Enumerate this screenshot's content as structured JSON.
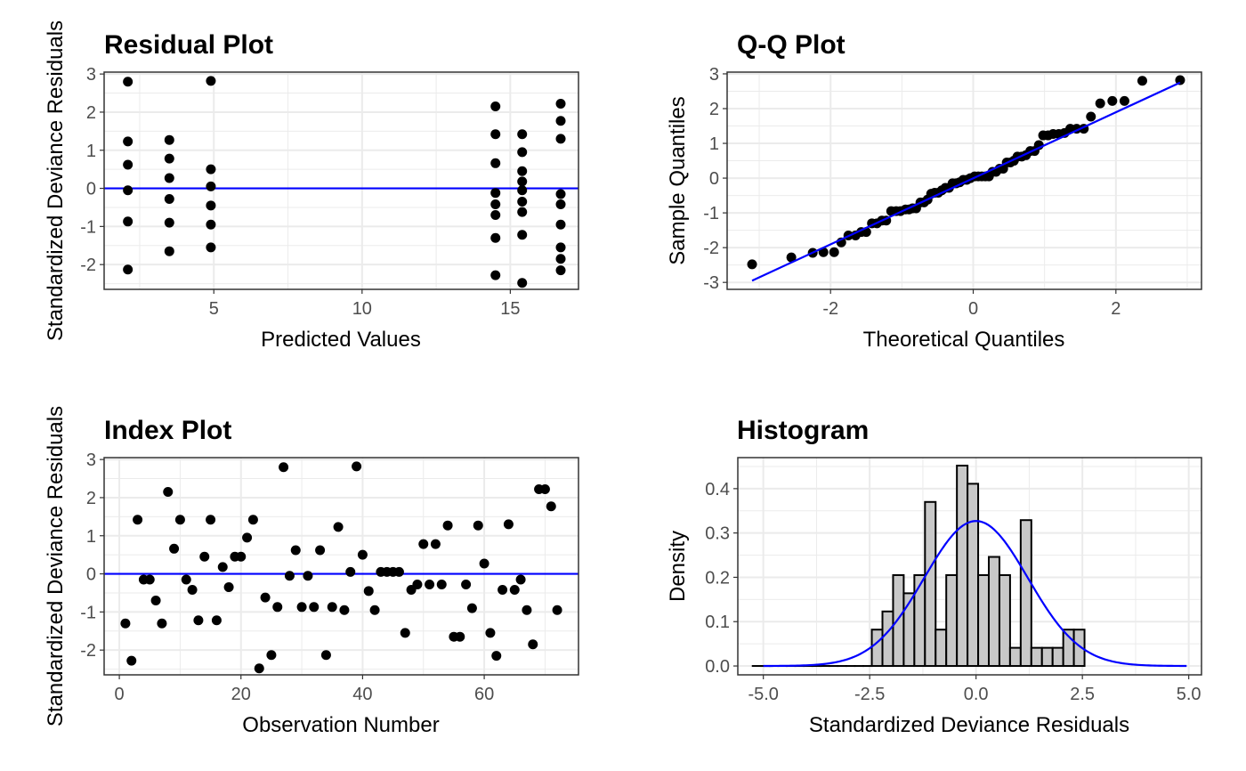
{
  "colors": {
    "points": "#000000",
    "reference_line": "#0000ff",
    "histogram_fill": "#c8c8c8",
    "gridline": "#ebebeb",
    "panel_border": "#333333"
  },
  "chart_data": [
    {
      "type": "scatter",
      "title": "Residual Plot",
      "xlabel": "Predicted Values",
      "ylabel": "Standardized Deviance Residuals",
      "xlim": [
        1.3,
        17.3
      ],
      "ylim": [
        -2.65,
        3.05
      ],
      "xticks": [
        5,
        10,
        15
      ],
      "yticks": [
        -2,
        -1,
        0,
        1,
        2,
        3
      ],
      "grid": true,
      "hline": 0,
      "points": [
        [
          2.1,
          2.8
        ],
        [
          2.1,
          1.23
        ],
        [
          2.1,
          0.62
        ],
        [
          2.1,
          -0.05
        ],
        [
          2.1,
          -0.87
        ],
        [
          2.1,
          -2.13
        ],
        [
          3.5,
          1.27
        ],
        [
          3.5,
          0.78
        ],
        [
          3.5,
          0.27
        ],
        [
          3.5,
          -0.28
        ],
        [
          3.5,
          -0.9
        ],
        [
          3.5,
          -1.65
        ],
        [
          4.9,
          2.82
        ],
        [
          4.9,
          0.5
        ],
        [
          4.9,
          0.05
        ],
        [
          4.9,
          -0.45
        ],
        [
          4.9,
          -0.95
        ],
        [
          4.9,
          -1.55
        ],
        [
          14.5,
          2.15
        ],
        [
          14.5,
          1.42
        ],
        [
          14.5,
          0.66
        ],
        [
          14.5,
          -0.12
        ],
        [
          14.5,
          -0.42
        ],
        [
          14.5,
          -0.7
        ],
        [
          14.5,
          -1.3
        ],
        [
          14.5,
          -2.28
        ],
        [
          15.4,
          1.42
        ],
        [
          15.4,
          0.95
        ],
        [
          15.4,
          0.45
        ],
        [
          15.4,
          0.18
        ],
        [
          15.4,
          -0.05
        ],
        [
          15.4,
          -0.35
        ],
        [
          15.4,
          -0.62
        ],
        [
          15.4,
          -1.22
        ],
        [
          15.4,
          -2.48
        ],
        [
          16.7,
          2.22
        ],
        [
          16.7,
          1.77
        ],
        [
          16.7,
          1.3
        ],
        [
          16.7,
          -0.15
        ],
        [
          16.7,
          -0.42
        ],
        [
          16.7,
          -0.95
        ],
        [
          16.7,
          -1.55
        ],
        [
          16.7,
          -1.85
        ],
        [
          16.7,
          -2.15
        ]
      ]
    },
    {
      "type": "scatter",
      "title": "Q-Q Plot",
      "xlabel": "Theoretical Quantiles",
      "ylabel": "Sample Quantiles",
      "xlim": [
        -3.45,
        3.2
      ],
      "ylim": [
        -3.2,
        3.05
      ],
      "xticks": [
        -2,
        0,
        2
      ],
      "yticks": [
        -3,
        -2,
        -1,
        0,
        1,
        2,
        3
      ],
      "grid": true,
      "reference_line": [
        [
          -3.1,
          -2.95
        ],
        [
          2.9,
          2.75
        ]
      ],
      "points": [
        [
          -3.1,
          -2.48
        ],
        [
          -2.55,
          -2.28
        ],
        [
          -2.25,
          -2.15
        ],
        [
          -2.1,
          -2.13
        ],
        [
          -1.95,
          -2.13
        ],
        [
          -1.85,
          -1.85
        ],
        [
          -1.75,
          -1.65
        ],
        [
          -1.65,
          -1.65
        ],
        [
          -1.57,
          -1.55
        ],
        [
          -1.5,
          -1.55
        ],
        [
          -1.42,
          -1.3
        ],
        [
          -1.35,
          -1.3
        ],
        [
          -1.28,
          -1.22
        ],
        [
          -1.22,
          -1.22
        ],
        [
          -1.15,
          -0.95
        ],
        [
          -1.08,
          -0.95
        ],
        [
          -1.02,
          -0.95
        ],
        [
          -0.95,
          -0.9
        ],
        [
          -0.9,
          -0.9
        ],
        [
          -0.85,
          -0.87
        ],
        [
          -0.8,
          -0.87
        ],
        [
          -0.74,
          -0.7
        ],
        [
          -0.69,
          -0.7
        ],
        [
          -0.64,
          -0.62
        ],
        [
          -0.59,
          -0.45
        ],
        [
          -0.54,
          -0.42
        ],
        [
          -0.49,
          -0.42
        ],
        [
          -0.44,
          -0.35
        ],
        [
          -0.39,
          -0.28
        ],
        [
          -0.34,
          -0.28
        ],
        [
          -0.29,
          -0.15
        ],
        [
          -0.24,
          -0.15
        ],
        [
          -0.19,
          -0.12
        ],
        [
          -0.14,
          -0.05
        ],
        [
          -0.09,
          -0.05
        ],
        [
          -0.04,
          0.0
        ],
        [
          0.02,
          0.05
        ],
        [
          0.07,
          0.05
        ],
        [
          0.12,
          0.05
        ],
        [
          0.17,
          0.05
        ],
        [
          0.22,
          0.05
        ],
        [
          0.27,
          0.18
        ],
        [
          0.32,
          0.18
        ],
        [
          0.37,
          0.27
        ],
        [
          0.42,
          0.27
        ],
        [
          0.47,
          0.45
        ],
        [
          0.52,
          0.45
        ],
        [
          0.57,
          0.5
        ],
        [
          0.62,
          0.62
        ],
        [
          0.68,
          0.62
        ],
        [
          0.74,
          0.66
        ],
        [
          0.8,
          0.78
        ],
        [
          0.86,
          0.78
        ],
        [
          0.92,
          0.95
        ],
        [
          0.98,
          1.23
        ],
        [
          1.05,
          1.23
        ],
        [
          1.12,
          1.27
        ],
        [
          1.2,
          1.27
        ],
        [
          1.28,
          1.3
        ],
        [
          1.36,
          1.42
        ],
        [
          1.45,
          1.42
        ],
        [
          1.55,
          1.42
        ],
        [
          1.65,
          1.77
        ],
        [
          1.78,
          2.15
        ],
        [
          1.95,
          2.22
        ],
        [
          2.12,
          2.22
        ],
        [
          2.37,
          2.8
        ],
        [
          2.9,
          2.82
        ]
      ]
    },
    {
      "type": "scatter",
      "title": "Index Plot",
      "xlabel": "Observation Number",
      "ylabel": "Standardized Deviance Residuals",
      "xlim": [
        -2.5,
        75.5
      ],
      "ylim": [
        -2.65,
        3.05
      ],
      "xticks": [
        0,
        20,
        40,
        60
      ],
      "yticks": [
        -2,
        -1,
        0,
        1,
        2,
        3
      ],
      "grid": true,
      "hline": 0,
      "points": [
        [
          1,
          -1.3
        ],
        [
          2,
          -2.28
        ],
        [
          3,
          1.42
        ],
        [
          4,
          -0.15
        ],
        [
          5,
          -0.15
        ],
        [
          6,
          -0.7
        ],
        [
          7,
          -1.3
        ],
        [
          8,
          2.15
        ],
        [
          9,
          0.66
        ],
        [
          10,
          1.42
        ],
        [
          11,
          -0.15
        ],
        [
          12,
          -0.42
        ],
        [
          13,
          -1.22
        ],
        [
          14,
          0.45
        ],
        [
          15,
          1.42
        ],
        [
          16,
          -1.22
        ],
        [
          17,
          0.18
        ],
        [
          18,
          -0.35
        ],
        [
          19,
          0.45
        ],
        [
          20,
          0.45
        ],
        [
          21,
          0.95
        ],
        [
          22,
          1.42
        ],
        [
          23,
          -2.48
        ],
        [
          24,
          -0.62
        ],
        [
          25,
          -2.13
        ],
        [
          26,
          -0.87
        ],
        [
          27,
          2.8
        ],
        [
          28,
          -0.05
        ],
        [
          29,
          0.62
        ],
        [
          30,
          -0.87
        ],
        [
          31,
          -0.05
        ],
        [
          32,
          -0.87
        ],
        [
          33,
          0.62
        ],
        [
          34,
          -2.13
        ],
        [
          35,
          -0.87
        ],
        [
          36,
          1.23
        ],
        [
          37,
          -0.95
        ],
        [
          38,
          0.05
        ],
        [
          39,
          2.82
        ],
        [
          40,
          0.5
        ],
        [
          41,
          -0.45
        ],
        [
          42,
          -0.95
        ],
        [
          43,
          0.05
        ],
        [
          44,
          0.05
        ],
        [
          45,
          0.05
        ],
        [
          46,
          0.05
        ],
        [
          47,
          -1.55
        ],
        [
          48,
          -0.42
        ],
        [
          49,
          -0.28
        ],
        [
          50,
          0.78
        ],
        [
          51,
          -0.28
        ],
        [
          52,
          0.78
        ],
        [
          53,
          -0.28
        ],
        [
          54,
          1.27
        ],
        [
          55,
          -1.65
        ],
        [
          56,
          -1.65
        ],
        [
          57,
          -0.28
        ],
        [
          58,
          -0.9
        ],
        [
          59,
          1.27
        ],
        [
          60,
          0.27
        ],
        [
          61,
          -1.55
        ],
        [
          62,
          -2.15
        ],
        [
          63,
          -0.42
        ],
        [
          64,
          1.3
        ],
        [
          65,
          -0.42
        ],
        [
          66,
          -0.15
        ],
        [
          67,
          -0.95
        ],
        [
          68,
          -1.85
        ],
        [
          69,
          2.22
        ],
        [
          70,
          2.22
        ],
        [
          71,
          1.77
        ],
        [
          72,
          -0.95
        ]
      ]
    },
    {
      "type": "bar",
      "subtype": "histogram",
      "title": "Histogram",
      "xlabel": "Standardized Deviance Residuals",
      "ylabel": "Density",
      "xlim": [
        -5.6,
        5.3
      ],
      "ylim": [
        -0.02,
        0.47
      ],
      "xticks": [
        -5.0,
        -2.5,
        0.0,
        2.5,
        5.0
      ],
      "xtick_labels": [
        "-5.0",
        "-2.5",
        "0.0",
        "2.5",
        "5.0"
      ],
      "yticks": [
        0.0,
        0.1,
        0.2,
        0.3,
        0.4
      ],
      "ytick_labels": [
        "0.0",
        "0.1",
        "0.2",
        "0.3",
        "0.4"
      ],
      "grid": true,
      "bins": [
        [
          -5.25,
          -5.05,
          0.0
        ],
        [
          -5.05,
          -4.85,
          0.0
        ],
        [
          -4.85,
          -4.65,
          0.0
        ],
        [
          -4.65,
          -4.45,
          0.0
        ],
        [
          -4.45,
          -4.25,
          0.0
        ],
        [
          -4.25,
          -4.05,
          0.0
        ],
        [
          -4.05,
          -3.85,
          0.0
        ],
        [
          -3.85,
          -3.65,
          0.0
        ],
        [
          -3.65,
          -3.45,
          0.0
        ],
        [
          -3.45,
          -3.25,
          0.0
        ],
        [
          -3.25,
          -3.05,
          0.0
        ],
        [
          -3.05,
          -2.85,
          0.0
        ],
        [
          -2.85,
          -2.65,
          0.0
        ],
        [
          -2.65,
          -2.45,
          0.0
        ],
        [
          -2.45,
          -2.2,
          0.082
        ],
        [
          -2.2,
          -1.95,
          0.123
        ],
        [
          -1.95,
          -1.7,
          0.205
        ],
        [
          -1.7,
          -1.45,
          0.164
        ],
        [
          -1.45,
          -1.2,
          0.205
        ],
        [
          -1.2,
          -0.95,
          0.37
        ],
        [
          -0.95,
          -0.7,
          0.082
        ],
        [
          -0.7,
          -0.45,
          0.205
        ],
        [
          -0.45,
          -0.2,
          0.452
        ],
        [
          -0.2,
          0.05,
          0.411
        ],
        [
          0.05,
          0.3,
          0.205
        ],
        [
          0.3,
          0.55,
          0.246
        ],
        [
          0.55,
          0.8,
          0.205
        ],
        [
          0.8,
          1.05,
          0.041
        ],
        [
          1.05,
          1.3,
          0.329
        ],
        [
          1.3,
          1.55,
          0.041
        ],
        [
          1.55,
          1.8,
          0.041
        ],
        [
          1.8,
          2.05,
          0.041
        ],
        [
          2.05,
          2.3,
          0.082
        ],
        [
          2.3,
          2.55,
          0.082
        ]
      ],
      "normal_curve": {
        "mean": 0.0,
        "sd": 1.22,
        "x_range": [
          -5.0,
          4.95
        ]
      }
    }
  ]
}
